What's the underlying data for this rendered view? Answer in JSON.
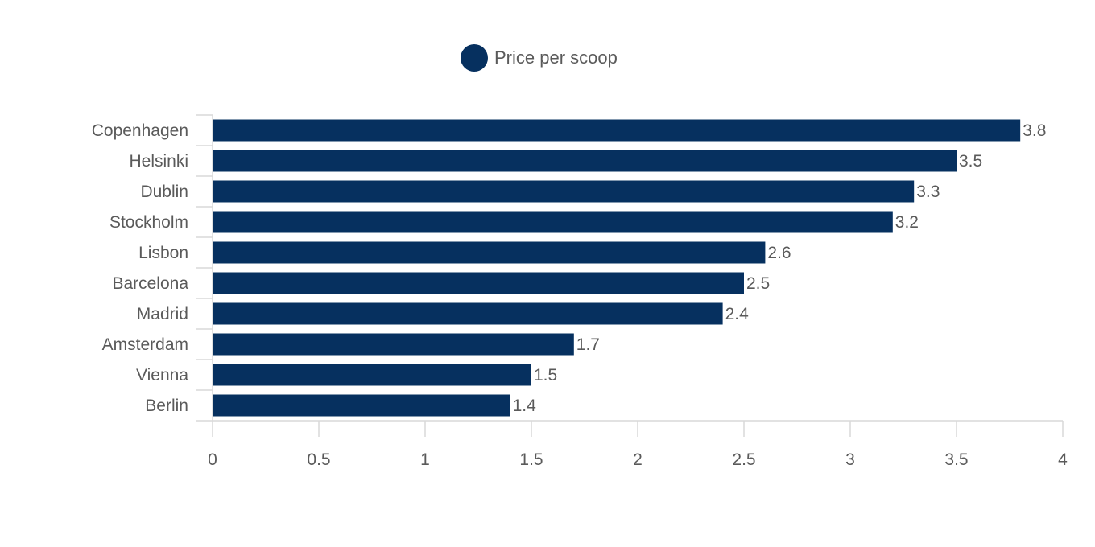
{
  "chart_data": {
    "type": "bar",
    "orientation": "horizontal",
    "categories": [
      "Copenhagen",
      "Helsinki",
      "Dublin",
      "Stockholm",
      "Lisbon",
      "Barcelona",
      "Madrid",
      "Amsterdam",
      "Vienna",
      "Berlin"
    ],
    "series": [
      {
        "name": "Price per scoop",
        "values": [
          3.8,
          3.5,
          3.3,
          3.2,
          2.6,
          2.5,
          2.4,
          1.7,
          1.5,
          1.4
        ]
      }
    ],
    "x_ticks": [
      "0",
      "0.5",
      "1",
      "1.5",
      "2",
      "2.5",
      "3",
      "3.5",
      "4"
    ],
    "xlim": [
      0,
      4
    ],
    "grid": false,
    "legend_position": "top-center",
    "data_labels": true,
    "colors": {
      "bar": "#06305f",
      "axis": "#d9d9d9",
      "text": "#5a5a5a"
    }
  }
}
